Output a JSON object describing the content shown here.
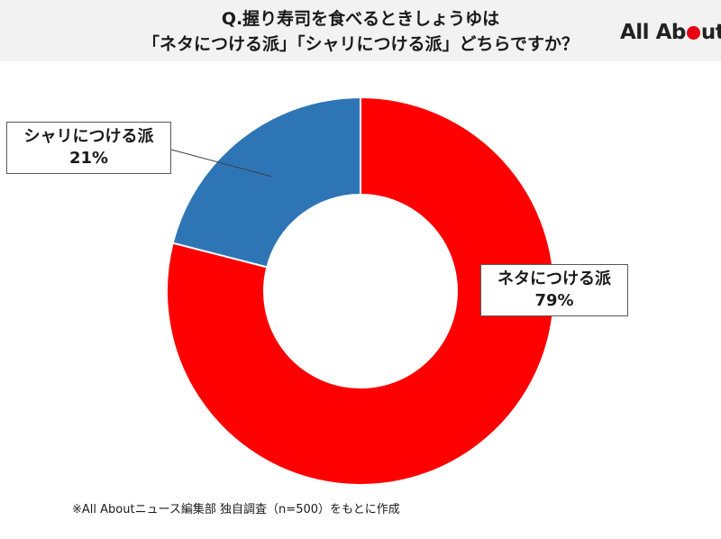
{
  "header": {
    "title_line1": "Q.握り寿司を食べるときしょうゆは",
    "title_line2": "「ネタにつける派」「シャリにつける派」どちらですか？",
    "logo_part1": "All Ab",
    "logo_part2": "ut"
  },
  "chart_data": {
    "type": "pie",
    "title": "Q.握り寿司を食べるときしょうゆは「ネタにつける派」「シャリにつける派」どちらですか？",
    "categories": [
      "ネタにつける派",
      "シャリにつける派"
    ],
    "values": [
      79,
      21
    ],
    "value_labels": [
      "79%",
      "21%"
    ],
    "colors": [
      "#ff0000",
      "#2e75b6"
    ],
    "legend": "none",
    "grid": false
  },
  "footnote": "※All Aboutニュース編集部 独自調査（n=500）をもとに作成"
}
